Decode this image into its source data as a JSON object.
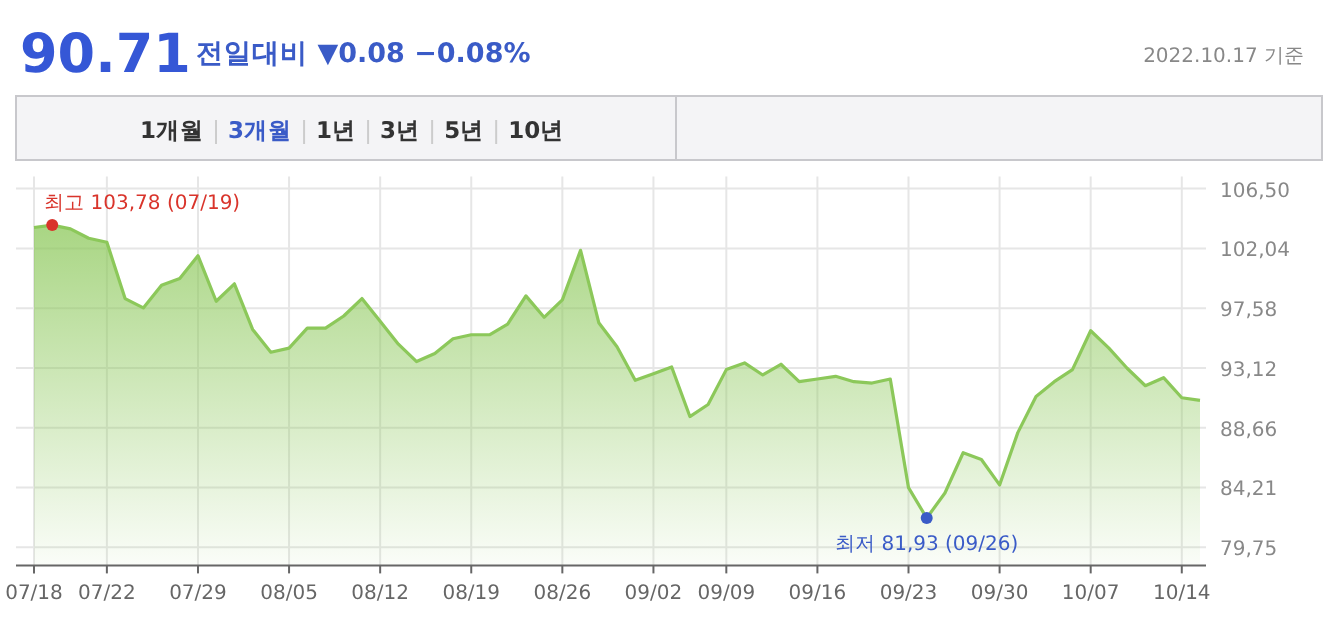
{
  "chart_data": {
    "type": "area",
    "title": "90.71",
    "subtitle": "전일대비 ▼0.08 −0.08%",
    "categories": [
      "07/18",
      null,
      null,
      null,
      "07/22",
      null,
      null,
      null,
      null,
      "07/29",
      null,
      null,
      null,
      null,
      "08/05",
      null,
      null,
      null,
      null,
      "08/12",
      null,
      null,
      null,
      null,
      "08/19",
      null,
      null,
      null,
      null,
      "08/26",
      null,
      null,
      null,
      null,
      "09/02",
      null,
      null,
      null,
      "09/09",
      null,
      null,
      null,
      null,
      "09/16",
      null,
      null,
      null,
      null,
      "09/23",
      null,
      null,
      null,
      null,
      "09/30",
      null,
      null,
      null,
      null,
      "10/07",
      null,
      null,
      null,
      null,
      "10/14",
      null
    ],
    "series": [
      {
        "color": "#8cc85a",
        "values": [
          103.6,
          103.78,
          103.5,
          102.8,
          102.5,
          98.3,
          97.6,
          99.3,
          99.8,
          101.5,
          98.1,
          99.4,
          96.0,
          94.3,
          94.6,
          96.1,
          96.1,
          97.0,
          98.3,
          96.6,
          94.9,
          93.6,
          94.2,
          95.3,
          95.6,
          95.6,
          96.4,
          98.5,
          96.9,
          98.2,
          101.9,
          96.5,
          94.7,
          92.2,
          92.7,
          93.2,
          89.5,
          90.4,
          93.0,
          93.5,
          92.6,
          93.4,
          92.1,
          92.3,
          92.5,
          92.1,
          92.0,
          92.3,
          84.2,
          81.93,
          83.8,
          86.8,
          86.3,
          84.4,
          88.3,
          91.0,
          92.1,
          93.0,
          95.9,
          94.6,
          93.1,
          91.8,
          92.4,
          90.9,
          90.71
        ]
      }
    ],
    "ylim": [
      78.4,
      106.5
    ],
    "yticks": [
      {
        "value": 79.75,
        "label": "79,75"
      },
      {
        "value": 84.21,
        "label": "84,21"
      },
      {
        "value": 88.66,
        "label": "88,66"
      },
      {
        "value": 93.12,
        "label": "93,12"
      },
      {
        "value": 97.58,
        "label": "97,58"
      },
      {
        "value": 102.04,
        "label": "102,04"
      },
      {
        "value": 106.5,
        "label": "106,50"
      }
    ],
    "grid": true,
    "marker": "none",
    "annotations": [
      "최고 103,78 (07/19)",
      "최저 81,93 (09/26)",
      "2022.10.17 기준",
      "1개월",
      "3개월",
      "1년",
      "3년",
      "5년",
      "10년"
    ]
  }
}
